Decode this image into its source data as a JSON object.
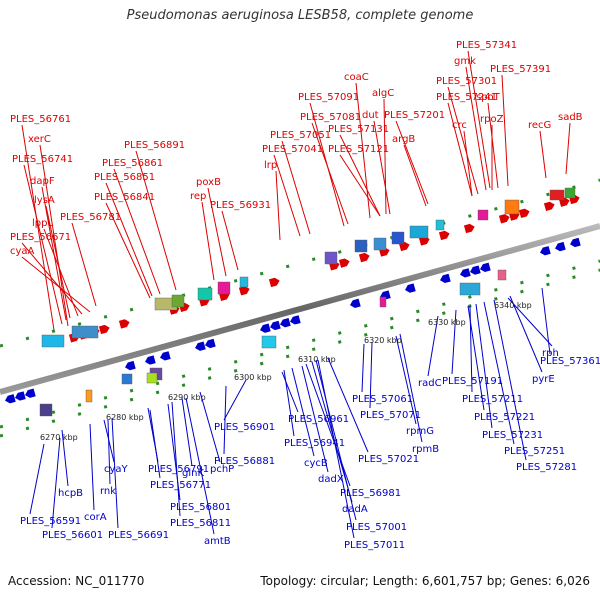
{
  "title": "Pseudomonas aeruginosa LESB58, complete genome",
  "footer": {
    "accession": "Accession: NC_011770",
    "summary": "Topology: circular; Length: 6,601,757 bp; Genes: 6,026"
  },
  "colors": {
    "forward": "#dd0000",
    "reverse": "#0000cc",
    "backbone": "#888888",
    "dot": "#2a8a2a"
  },
  "kbp_ticks": [
    "6270 kbp",
    "6280 kbp",
    "6290 kbp",
    "6300 kbp",
    "6310 kbp",
    "6320 kbp",
    "6330 kbp",
    "6340 kbp"
  ],
  "forward_genes": [
    "PLES_56761",
    "xerC",
    "PLES_56741",
    "dapF",
    "lysA",
    "lppL",
    "PLES_56671",
    "cyaA",
    "PLES_56781",
    "PLES_56891",
    "PLES_56861",
    "PLES_56851",
    "PLES_56841",
    "poxB",
    "rep",
    "PLES_56931",
    "lrp",
    "PLES_57041",
    "PLES_57051",
    "PLES_57091",
    "PLES_57081",
    "coaC",
    "algC",
    "dut",
    "PLES_57131",
    "PLES_57121",
    "argB",
    "PLES_57201",
    "PLES_57241",
    "PLES_57301",
    "gmk",
    "PLES_57341",
    "crc",
    "rpoZ",
    "spoT",
    "PLES_57391",
    "recG",
    "sadB"
  ],
  "reverse_genes": [
    "PLES_56591",
    "PLES_56601",
    "hcpB",
    "corA",
    "cyaY",
    "rnk",
    "PLES_56691",
    "PLES_56791",
    "PLES_56771",
    "PLES_56801",
    "PLES_56811",
    "amtB",
    "glnK",
    "pchP",
    "PLES_56881",
    "PLES_56901",
    "PLES_56961",
    "PLES_56941",
    "cycB",
    "dadX",
    "PLES_56981",
    "dadA",
    "PLES_57001",
    "PLES_57011",
    "PLES_57021",
    "PLES_57061",
    "PLES_57071",
    "rpmG",
    "rpmB",
    "radC",
    "PLES_57191",
    "PLES_57211",
    "pyrE",
    "rph",
    "PLES_57221",
    "PLES_57231",
    "PLES_57251",
    "PLES_57281",
    "PLES_57361"
  ]
}
